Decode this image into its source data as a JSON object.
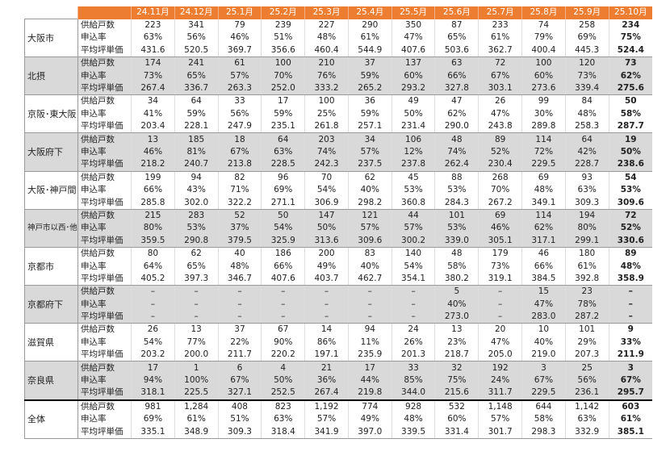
{
  "table": {
    "columns": [
      "24.11月",
      "24.12月",
      "25.1月",
      "25.2月",
      "25.3月",
      "25.4月",
      "25.5月",
      "25.6月",
      "25.7月",
      "25.8月",
      "25.9月",
      "25.10月"
    ],
    "regions": [
      {
        "name": "大阪市",
        "rows": [
          {
            "label": "供給戸数",
            "values": [
              "223",
              "341",
              "79",
              "239",
              "227",
              "290",
              "350",
              "87",
              "233",
              "74",
              "258",
              "234"
            ]
          },
          {
            "label": "申込率",
            "values": [
              "63%",
              "56%",
              "46%",
              "51%",
              "48%",
              "61%",
              "47%",
              "65%",
              "61%",
              "79%",
              "69%",
              "75%"
            ]
          },
          {
            "label": "平均坪単価",
            "values": [
              "431.6",
              "520.5",
              "369.7",
              "356.6",
              "460.4",
              "544.9",
              "407.6",
              "503.6",
              "362.7",
              "400.4",
              "445.3",
              "524.4"
            ]
          }
        ]
      },
      {
        "name": "北摂",
        "rows": [
          {
            "label": "供給戸数",
            "values": [
              "174",
              "241",
              "61",
              "100",
              "210",
              "37",
              "137",
              "63",
              "72",
              "100",
              "120",
              "73"
            ]
          },
          {
            "label": "申込率",
            "values": [
              "73%",
              "65%",
              "57%",
              "70%",
              "76%",
              "59%",
              "60%",
              "66%",
              "67%",
              "60%",
              "73%",
              "62%"
            ]
          },
          {
            "label": "平均坪単価",
            "values": [
              "267.4",
              "336.7",
              "263.3",
              "252.0",
              "333.2",
              "265.2",
              "293.2",
              "327.8",
              "303.1",
              "273.6",
              "339.4",
              "275.6"
            ]
          }
        ]
      },
      {
        "name": "京阪･東大阪",
        "rows": [
          {
            "label": "供給戸数",
            "values": [
              "34",
              "64",
              "33",
              "17",
              "100",
              "36",
              "49",
              "47",
              "26",
              "99",
              "84",
              "50"
            ]
          },
          {
            "label": "申込率",
            "values": [
              "41%",
              "59%",
              "56%",
              "59%",
              "25%",
              "59%",
              "50%",
              "62%",
              "47%",
              "30%",
              "48%",
              "58%"
            ]
          },
          {
            "label": "平均坪単価",
            "values": [
              "203.4",
              "228.1",
              "247.9",
              "235.1",
              "261.8",
              "257.1",
              "231.4",
              "290.0",
              "243.8",
              "289.8",
              "258.3",
              "287.7"
            ]
          }
        ]
      },
      {
        "name": "大阪府下",
        "rows": [
          {
            "label": "供給戸数",
            "values": [
              "13",
              "185",
              "18",
              "64",
              "203",
              "34",
              "106",
              "48",
              "89",
              "114",
              "64",
              "19"
            ]
          },
          {
            "label": "申込率",
            "values": [
              "46%",
              "81%",
              "67%",
              "63%",
              "74%",
              "57%",
              "12%",
              "74%",
              "52%",
              "72%",
              "42%",
              "50%"
            ]
          },
          {
            "label": "平均坪単価",
            "values": [
              "218.2",
              "240.7",
              "213.8",
              "228.5",
              "242.3",
              "237.5",
              "237.8",
              "262.4",
              "230.4",
              "229.5",
              "228.7",
              "238.6"
            ]
          }
        ]
      },
      {
        "name": "大阪･神戸間",
        "rows": [
          {
            "label": "供給戸数",
            "values": [
              "199",
              "94",
              "82",
              "96",
              "70",
              "62",
              "45",
              "88",
              "268",
              "69",
              "93",
              "54"
            ]
          },
          {
            "label": "申込率",
            "values": [
              "66%",
              "43%",
              "71%",
              "69%",
              "54%",
              "40%",
              "53%",
              "53%",
              "70%",
              "48%",
              "63%",
              "53%"
            ]
          },
          {
            "label": "平均坪単価",
            "values": [
              "285.8",
              "302.0",
              "322.2",
              "271.1",
              "306.9",
              "298.2",
              "360.8",
              "284.3",
              "267.2",
              "349.1",
              "309.3",
              "309.6"
            ]
          }
        ]
      },
      {
        "name": "神戸市以西･他",
        "rows": [
          {
            "label": "供給戸数",
            "values": [
              "215",
              "283",
              "52",
              "50",
              "147",
              "121",
              "44",
              "101",
              "69",
              "114",
              "194",
              "72"
            ]
          },
          {
            "label": "申込率",
            "values": [
              "80%",
              "53%",
              "37%",
              "54%",
              "50%",
              "57%",
              "57%",
              "53%",
              "46%",
              "62%",
              "80%",
              "52%"
            ]
          },
          {
            "label": "平均坪単価",
            "values": [
              "359.5",
              "290.8",
              "379.5",
              "325.9",
              "313.6",
              "309.6",
              "300.2",
              "339.0",
              "305.1",
              "317.1",
              "299.1",
              "330.6"
            ]
          }
        ]
      },
      {
        "name": "京都市",
        "rows": [
          {
            "label": "供給戸数",
            "values": [
              "80",
              "62",
              "40",
              "186",
              "200",
              "83",
              "140",
              "48",
              "179",
              "46",
              "180",
              "89"
            ]
          },
          {
            "label": "申込率",
            "values": [
              "64%",
              "65%",
              "48%",
              "66%",
              "49%",
              "40%",
              "54%",
              "58%",
              "73%",
              "66%",
              "61%",
              "48%"
            ]
          },
          {
            "label": "平均坪単価",
            "values": [
              "405.2",
              "397.3",
              "346.7",
              "407.6",
              "403.7",
              "462.7",
              "354.1",
              "380.2",
              "319.1",
              "384.5",
              "392.8",
              "358.9"
            ]
          }
        ]
      },
      {
        "name": "京都府下",
        "rows": [
          {
            "label": "供給戸数",
            "values": [
              "–",
              "–",
              "–",
              "–",
              "–",
              "–",
              "–",
              "5",
              "–",
              "15",
              "23",
              "–"
            ]
          },
          {
            "label": "申込率",
            "values": [
              "–",
              "–",
              "–",
              "–",
              "–",
              "–",
              "–",
              "40%",
              "–",
              "47%",
              "78%",
              "–"
            ]
          },
          {
            "label": "平均坪単価",
            "values": [
              "–",
              "–",
              "–",
              "–",
              "–",
              "–",
              "–",
              "273.0",
              "–",
              "283.0",
              "287.2",
              "–"
            ]
          }
        ]
      },
      {
        "name": "滋賀県",
        "rows": [
          {
            "label": "供給戸数",
            "values": [
              "26",
              "13",
              "37",
              "67",
              "14",
              "94",
              "24",
              "13",
              "20",
              "10",
              "101",
              "9"
            ]
          },
          {
            "label": "申込率",
            "values": [
              "54%",
              "77%",
              "22%",
              "90%",
              "86%",
              "11%",
              "26%",
              "23%",
              "47%",
              "40%",
              "29%",
              "33%"
            ]
          },
          {
            "label": "平均坪単価",
            "values": [
              "203.2",
              "200.0",
              "211.7",
              "220.2",
              "197.1",
              "235.9",
              "201.3",
              "218.7",
              "205.0",
              "219.0",
              "207.3",
              "211.9"
            ]
          }
        ]
      },
      {
        "name": "奈良県",
        "rows": [
          {
            "label": "供給戸数",
            "values": [
              "17",
              "1",
              "6",
              "4",
              "21",
              "17",
              "33",
              "32",
              "192",
              "3",
              "25",
              "3"
            ]
          },
          {
            "label": "申込率",
            "values": [
              "94%",
              "100%",
              "67%",
              "50%",
              "36%",
              "44%",
              "85%",
              "75%",
              "24%",
              "67%",
              "56%",
              "67%"
            ]
          },
          {
            "label": "平均坪単価",
            "values": [
              "318.1",
              "225.5",
              "327.1",
              "252.5",
              "267.4",
              "219.8",
              "344.0",
              "215.6",
              "311.7",
              "229.5",
              "236.1",
              "295.7"
            ]
          }
        ]
      },
      {
        "name": "全体",
        "rows": [
          {
            "label": "供給戸数",
            "values": [
              "981",
              "1,284",
              "408",
              "823",
              "1,192",
              "774",
              "928",
              "532",
              "1,148",
              "644",
              "1,142",
              "603"
            ]
          },
          {
            "label": "申込率",
            "values": [
              "69%",
              "61%",
              "51%",
              "63%",
              "57%",
              "49%",
              "48%",
              "60%",
              "57%",
              "58%",
              "63%",
              "61%"
            ]
          },
          {
            "label": "平均坪単価",
            "values": [
              "335.1",
              "348.9",
              "309.3",
              "318.4",
              "341.9",
              "397.0",
              "339.5",
              "331.4",
              "301.7",
              "298.3",
              "332.9",
              "385.1"
            ]
          }
        ]
      }
    ]
  }
}
